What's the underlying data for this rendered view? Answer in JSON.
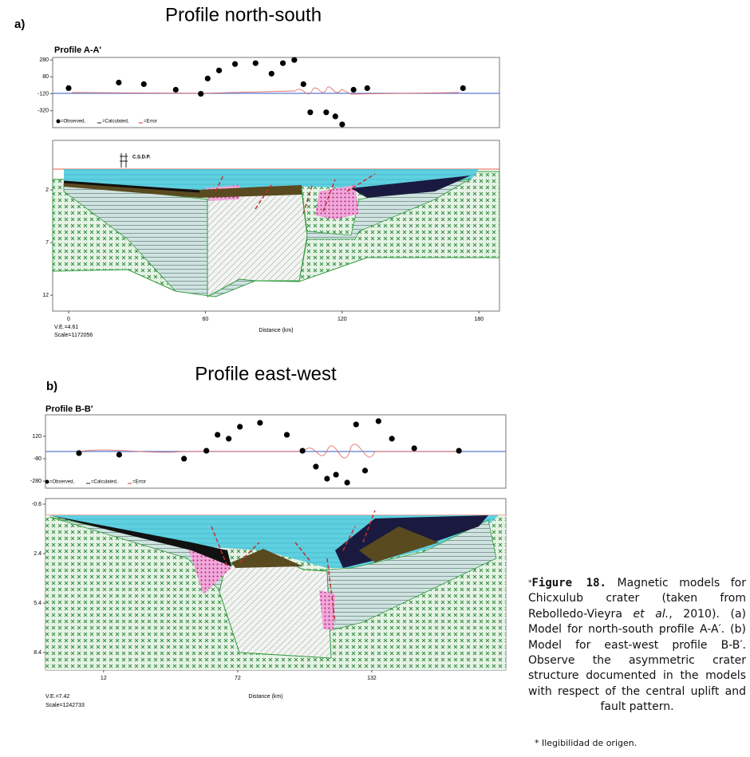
{
  "figure": {
    "panels": [
      {
        "label": "a)",
        "title": "Profile north-south",
        "profile": "Profile A-A'",
        "legend": [
          "=Observed,",
          "=Calculated,",
          "=Error"
        ],
        "anomaly": {
          "xlim": [
            -7,
            189
          ],
          "ylim": [
            -520,
            310
          ],
          "yticks": [
            280,
            80,
            -120,
            -320
          ],
          "x": [
            0,
            22,
            33,
            47,
            58,
            61,
            66,
            73,
            82,
            89,
            94,
            99,
            103,
            106,
            113,
            117,
            120,
            125,
            131,
            173
          ],
          "observed": [
            -53,
            13,
            -6,
            -72,
            -120,
            61,
            156,
            232,
            242,
            118,
            242,
            280,
            -6,
            -339,
            -339,
            -387,
            -482,
            -72,
            -53,
            -53
          ]
        },
        "model": {
          "ylim": [
            -2.7,
            13.5
          ],
          "yticks": [
            2,
            7,
            12
          ],
          "xticks": [
            0,
            60,
            120,
            180
          ],
          "xlabel": "Distance (km)",
          "annotation": "C.S.D.P."
        },
        "ve": "V.E.=4.61",
        "scale": "Scale=1172056"
      },
      {
        "label": "b)",
        "title": "Profile east-west",
        "profile": "Profile B-B'",
        "legend": [
          "=Observed,",
          "=Calculated,",
          "=Error"
        ],
        "anomaly": {
          "xlim": [
            -14,
            192
          ],
          "ylim": [
            -344,
            313
          ],
          "yticks": [
            120,
            -80,
            -280
          ],
          "x": [
            1,
            19,
            48,
            58,
            63,
            68,
            73,
            82,
            94,
            101,
            107,
            112,
            116,
            121,
            125,
            129,
            135,
            141,
            151,
            171
          ],
          "observed": [
            -30,
            -44,
            -80,
            -9,
            134,
            99,
            206,
            241,
            134,
            -9,
            -151,
            -259,
            -223,
            -294,
            227,
            -187,
            256,
            99,
            13,
            -9
          ]
        },
        "model": {
          "ylim": [
            -0.94,
            9.46
          ],
          "yticks": [
            -0.6,
            2.4,
            5.4,
            8.4
          ],
          "xticks": [
            12,
            72,
            132
          ],
          "xlabel": "Distance (km)"
        },
        "ve": "V.E.=7.42",
        "scale": "Scale=1242733"
      }
    ]
  },
  "caption": {
    "marker": "*",
    "label": "Figure 18.",
    "text1": " Magnetic models for Chicxulub crater (taken from Rebolledo-Vieyra ",
    "italic": "et al.",
    "text2": ", 2010). (a) Model for north-south profile A-A′. (b) Model for east-west profile B-B′. Observe the asymmetric crater structure documented in the models with respect of the central uplift and fault pattern."
  },
  "footnote": "* Ilegibilidad de origen."
}
